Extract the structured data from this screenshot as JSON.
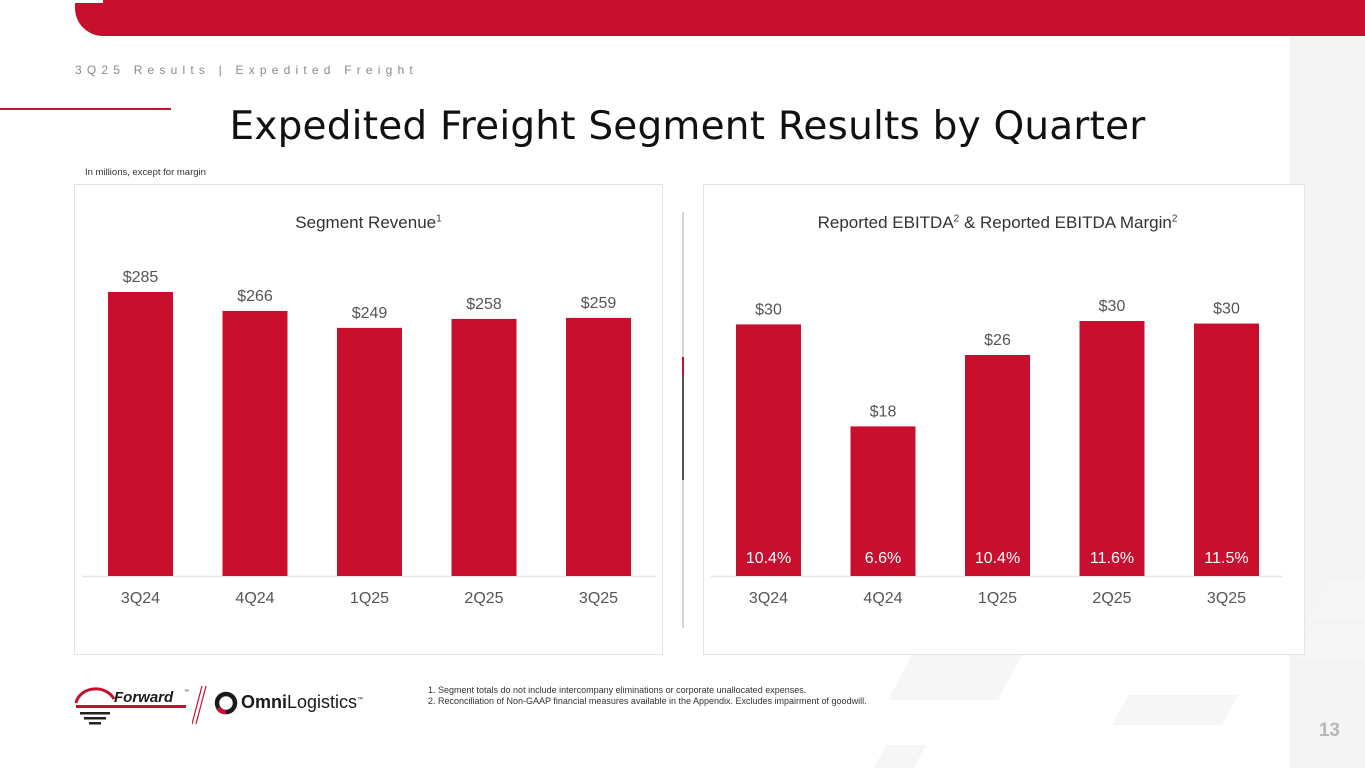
{
  "header": {
    "breadcrumb": "3Q25 Results | Expedited Freight",
    "title": "Expedited Freight Segment Results by Quarter",
    "units_note": "In millions, except for margin"
  },
  "chart_data": [
    {
      "type": "bar",
      "title": "Segment Revenue",
      "title_footnote": "1",
      "categories": [
        "3Q24",
        "4Q24",
        "1Q25",
        "2Q25",
        "3Q25"
      ],
      "values": [
        285,
        266,
        249,
        258,
        259
      ],
      "value_labels": [
        "$285",
        "$266",
        "$249",
        "$258",
        "$259"
      ],
      "ylim": [
        0,
        300
      ],
      "bar_color": "#c8102e"
    },
    {
      "type": "bar",
      "title": "Reported EBITDA",
      "title_footnote": "2",
      "title_suffix": " & Reported EBITDA Margin",
      "title_suffix_footnote": "2",
      "categories": [
        "3Q24",
        "4Q24",
        "1Q25",
        "2Q25",
        "3Q25"
      ],
      "values": [
        30,
        18,
        26,
        30,
        30
      ],
      "precise_values": [
        29.6,
        17.6,
        26.0,
        30.0,
        29.7
      ],
      "value_labels": [
        "$30",
        "$18",
        "$26",
        "$30",
        "$30"
      ],
      "margins": [
        "10.4%",
        "6.6%",
        "10.4%",
        "11.6%",
        "11.5%"
      ],
      "ylim": [
        0,
        37
      ],
      "bar_color": "#c8102e"
    }
  ],
  "footnotes": [
    "1. Segment totals do not include intercompany eliminations or corporate unallocated expenses.",
    "2. Reconciliation of Non-GAAP financial measures available in the Appendix. Excludes impairment of goodwill."
  ],
  "logos": {
    "forward": "Forward",
    "forward_tm": "™",
    "omni_bold": "Omni",
    "omni_light": "Logistics",
    "omni_tm": "™"
  },
  "page_number": "13",
  "colors": {
    "brand_red": "#c8102e",
    "label_gray": "#555555",
    "axis_gray": "#e6e6e6"
  }
}
